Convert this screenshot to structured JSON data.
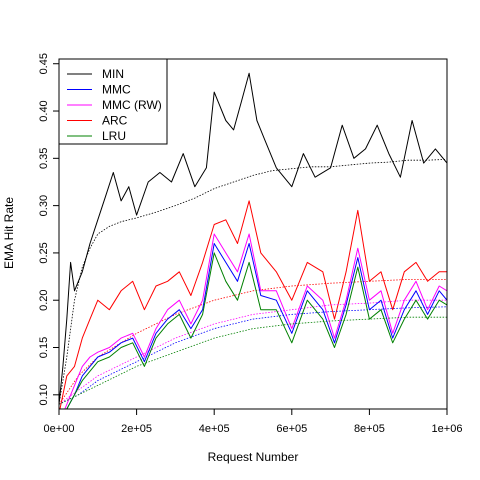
{
  "chart_data": {
    "type": "line",
    "xlabel": "Request Number",
    "ylabel": "EMA Hit Rate",
    "xlim": [
      0,
      1000000
    ],
    "ylim": [
      0.085,
      0.455
    ],
    "x_ticks": [
      0,
      200000,
      400000,
      600000,
      800000,
      1000000
    ],
    "x_tick_labels": [
      "0e+00",
      "2e+05",
      "4e+05",
      "6e+05",
      "8e+05",
      "1e+06"
    ],
    "y_ticks": [
      0.1,
      0.15,
      0.2,
      0.25,
      0.3,
      0.35,
      0.4,
      0.45
    ],
    "y_tick_labels": [
      "0.10",
      "0.15",
      "0.20",
      "0.25",
      "0.30",
      "0.35",
      "0.40",
      "0.45"
    ],
    "grid": false,
    "legend_position": "top-left",
    "legend": [
      {
        "name": "MIN",
        "color": "#000000"
      },
      {
        "name": "MMC",
        "color": "#0000ff"
      },
      {
        "name": "MMC (RW)",
        "color": "#ff00ff"
      },
      {
        "name": "ARC",
        "color": "#ff0000"
      },
      {
        "name": "LRU",
        "color": "#008000"
      }
    ],
    "series": [
      {
        "name": "MIN",
        "style": "solid",
        "color": "#000000",
        "x": [
          0,
          10000,
          20000,
          30000,
          40000,
          60000,
          80000,
          100000,
          120000,
          140000,
          160000,
          180000,
          200000,
          230000,
          260000,
          290000,
          320000,
          350000,
          380000,
          400000,
          430000,
          450000,
          470000,
          490000,
          510000,
          530000,
          560000,
          600000,
          630000,
          660000,
          700000,
          730000,
          760000,
          790000,
          820000,
          850000,
          880000,
          910000,
          940000,
          970000,
          1000000
        ],
        "values": [
          0.09,
          0.13,
          0.18,
          0.24,
          0.21,
          0.23,
          0.26,
          0.285,
          0.31,
          0.335,
          0.305,
          0.32,
          0.29,
          0.325,
          0.335,
          0.325,
          0.355,
          0.32,
          0.34,
          0.42,
          0.39,
          0.38,
          0.41,
          0.44,
          0.39,
          0.37,
          0.34,
          0.32,
          0.355,
          0.33,
          0.34,
          0.385,
          0.35,
          0.36,
          0.385,
          0.355,
          0.33,
          0.39,
          0.345,
          0.36,
          0.345
        ]
      },
      {
        "name": "MIN (average)",
        "style": "dotted",
        "color": "#000000",
        "x": [
          0,
          20000,
          40000,
          60000,
          80000,
          100000,
          130000,
          160000,
          200000,
          250000,
          300000,
          350000,
          400000,
          450000,
          500000,
          550000,
          600000,
          650000,
          700000,
          750000,
          800000,
          850000,
          900000,
          950000,
          1000000
        ],
        "values": [
          0.09,
          0.14,
          0.2,
          0.235,
          0.255,
          0.27,
          0.278,
          0.283,
          0.287,
          0.293,
          0.3,
          0.308,
          0.318,
          0.325,
          0.332,
          0.337,
          0.339,
          0.341,
          0.341,
          0.343,
          0.345,
          0.346,
          0.348,
          0.348,
          0.349
        ]
      },
      {
        "name": "ARC",
        "style": "solid",
        "color": "#ff0000",
        "x": [
          0,
          20000,
          40000,
          60000,
          80000,
          100000,
          130000,
          160000,
          190000,
          220000,
          250000,
          280000,
          310000,
          340000,
          370000,
          400000,
          430000,
          460000,
          490000,
          520000,
          560000,
          600000,
          640000,
          680000,
          710000,
          740000,
          770000,
          800000,
          830000,
          860000,
          890000,
          920000,
          950000,
          980000,
          1000000
        ],
        "values": [
          0.08,
          0.12,
          0.13,
          0.16,
          0.18,
          0.2,
          0.19,
          0.21,
          0.22,
          0.19,
          0.215,
          0.22,
          0.23,
          0.205,
          0.24,
          0.28,
          0.285,
          0.26,
          0.305,
          0.25,
          0.23,
          0.2,
          0.24,
          0.23,
          0.18,
          0.23,
          0.295,
          0.22,
          0.23,
          0.19,
          0.23,
          0.24,
          0.22,
          0.23,
          0.23
        ]
      },
      {
        "name": "ARC (average)",
        "style": "dotted",
        "color": "#ff0000",
        "x": [
          0,
          50000,
          100000,
          200000,
          300000,
          400000,
          500000,
          600000,
          700000,
          800000,
          900000,
          1000000
        ],
        "values": [
          0.09,
          0.12,
          0.14,
          0.165,
          0.185,
          0.2,
          0.21,
          0.215,
          0.218,
          0.22,
          0.222,
          0.222
        ]
      },
      {
        "name": "MMC (RW)",
        "style": "solid",
        "color": "#ff00ff",
        "x": [
          0,
          20000,
          40000,
          60000,
          80000,
          100000,
          130000,
          160000,
          190000,
          220000,
          250000,
          280000,
          310000,
          340000,
          370000,
          400000,
          430000,
          460000,
          490000,
          520000,
          560000,
          600000,
          640000,
          680000,
          710000,
          740000,
          770000,
          800000,
          830000,
          860000,
          890000,
          920000,
          950000,
          980000,
          1000000
        ],
        "values": [
          0.07,
          0.09,
          0.11,
          0.13,
          0.14,
          0.145,
          0.15,
          0.16,
          0.165,
          0.14,
          0.17,
          0.19,
          0.2,
          0.175,
          0.2,
          0.27,
          0.25,
          0.23,
          0.27,
          0.21,
          0.21,
          0.17,
          0.215,
          0.2,
          0.16,
          0.2,
          0.255,
          0.2,
          0.21,
          0.165,
          0.2,
          0.22,
          0.19,
          0.215,
          0.21
        ]
      },
      {
        "name": "MMC (RW) (average)",
        "style": "dotted",
        "color": "#ff00ff",
        "x": [
          0,
          50000,
          100000,
          200000,
          300000,
          400000,
          500000,
          600000,
          700000,
          800000,
          900000,
          1000000
        ],
        "values": [
          0.09,
          0.105,
          0.12,
          0.14,
          0.16,
          0.175,
          0.185,
          0.19,
          0.195,
          0.197,
          0.2,
          0.2
        ]
      },
      {
        "name": "MMC",
        "style": "solid",
        "color": "#0000ff",
        "x": [
          0,
          20000,
          40000,
          60000,
          80000,
          100000,
          130000,
          160000,
          190000,
          220000,
          250000,
          280000,
          310000,
          340000,
          370000,
          400000,
          430000,
          460000,
          490000,
          520000,
          560000,
          600000,
          640000,
          680000,
          710000,
          740000,
          770000,
          800000,
          830000,
          860000,
          890000,
          920000,
          950000,
          980000,
          1000000
        ],
        "values": [
          0.07,
          0.085,
          0.1,
          0.12,
          0.13,
          0.14,
          0.145,
          0.155,
          0.16,
          0.135,
          0.165,
          0.18,
          0.19,
          0.17,
          0.19,
          0.26,
          0.24,
          0.22,
          0.26,
          0.205,
          0.2,
          0.165,
          0.21,
          0.19,
          0.155,
          0.195,
          0.245,
          0.19,
          0.2,
          0.16,
          0.19,
          0.21,
          0.185,
          0.21,
          0.2
        ]
      },
      {
        "name": "MMC (average)",
        "style": "dotted",
        "color": "#0000ff",
        "x": [
          0,
          50000,
          100000,
          200000,
          300000,
          400000,
          500000,
          600000,
          700000,
          800000,
          900000,
          1000000
        ],
        "values": [
          0.09,
          0.1,
          0.115,
          0.135,
          0.155,
          0.17,
          0.18,
          0.185,
          0.188,
          0.19,
          0.192,
          0.193
        ]
      },
      {
        "name": "LRU",
        "style": "solid",
        "color": "#008000",
        "x": [
          0,
          20000,
          40000,
          60000,
          80000,
          100000,
          130000,
          160000,
          190000,
          220000,
          250000,
          280000,
          310000,
          340000,
          370000,
          400000,
          430000,
          460000,
          490000,
          520000,
          560000,
          600000,
          640000,
          680000,
          710000,
          740000,
          770000,
          800000,
          830000,
          860000,
          890000,
          920000,
          950000,
          980000,
          1000000
        ],
        "values": [
          0.07,
          0.085,
          0.1,
          0.115,
          0.125,
          0.135,
          0.14,
          0.15,
          0.155,
          0.13,
          0.16,
          0.175,
          0.185,
          0.16,
          0.185,
          0.25,
          0.22,
          0.2,
          0.24,
          0.19,
          0.19,
          0.155,
          0.2,
          0.18,
          0.15,
          0.185,
          0.235,
          0.18,
          0.19,
          0.155,
          0.18,
          0.2,
          0.18,
          0.2,
          0.195
        ]
      },
      {
        "name": "LRU (average)",
        "style": "dotted",
        "color": "#008000",
        "x": [
          0,
          50000,
          100000,
          200000,
          300000,
          400000,
          500000,
          600000,
          700000,
          800000,
          900000,
          1000000
        ],
        "values": [
          0.09,
          0.1,
          0.11,
          0.13,
          0.145,
          0.16,
          0.17,
          0.175,
          0.178,
          0.18,
          0.182,
          0.182
        ]
      }
    ]
  }
}
